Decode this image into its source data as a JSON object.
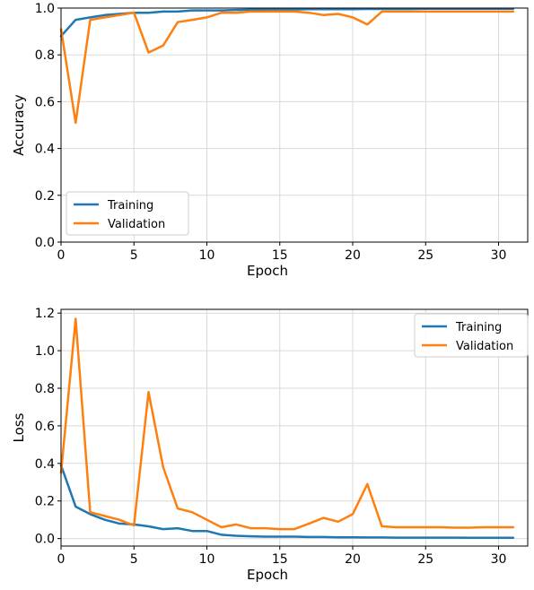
{
  "chart_data": [
    {
      "type": "line",
      "title": "",
      "xlabel": "Epoch",
      "ylabel": "Accuracy",
      "xlim": [
        0,
        32
      ],
      "ylim": [
        0.0,
        1.0
      ],
      "xticks": [
        "0",
        "5",
        "10",
        "15",
        "20",
        "25",
        "30"
      ],
      "yticks": [
        "0.0",
        "0.2",
        "0.4",
        "0.6",
        "0.8",
        "1.0"
      ],
      "grid": true,
      "legend_position": "lower-left",
      "x": [
        0,
        1,
        2,
        3,
        4,
        5,
        6,
        7,
        8,
        9,
        10,
        11,
        12,
        13,
        14,
        15,
        16,
        17,
        18,
        19,
        20,
        21,
        22,
        23,
        24,
        25,
        26,
        27,
        28,
        29,
        30,
        31
      ],
      "series": [
        {
          "name": "Training",
          "color": "#1f77b4",
          "values": [
            0.88,
            0.95,
            0.96,
            0.97,
            0.975,
            0.98,
            0.98,
            0.985,
            0.985,
            0.99,
            0.99,
            0.99,
            0.992,
            0.993,
            0.993,
            0.994,
            0.994,
            0.995,
            0.995,
            0.995,
            0.995,
            0.996,
            0.996,
            0.996,
            0.996,
            0.997,
            0.997,
            0.997,
            0.997,
            0.997,
            0.997,
            0.997
          ]
        },
        {
          "name": "Validation",
          "color": "#ff7f0e",
          "values": [
            0.91,
            0.51,
            0.95,
            0.96,
            0.97,
            0.98,
            0.81,
            0.84,
            0.94,
            0.95,
            0.96,
            0.98,
            0.98,
            0.985,
            0.985,
            0.985,
            0.985,
            0.98,
            0.97,
            0.975,
            0.96,
            0.93,
            0.985,
            0.985,
            0.985,
            0.985,
            0.985,
            0.985,
            0.985,
            0.985,
            0.985,
            0.985
          ]
        }
      ]
    },
    {
      "type": "line",
      "title": "",
      "xlabel": "Epoch",
      "ylabel": "Loss",
      "xlim": [
        0,
        32
      ],
      "ylim": [
        -0.04,
        1.22
      ],
      "xticks": [
        "0",
        "5",
        "10",
        "15",
        "20",
        "25",
        "30"
      ],
      "yticks": [
        "0.0",
        "0.2",
        "0.4",
        "0.6",
        "0.8",
        "1.0",
        "1.2"
      ],
      "grid": true,
      "legend_position": "top-right",
      "x": [
        0,
        1,
        2,
        3,
        4,
        5,
        6,
        7,
        8,
        9,
        10,
        11,
        12,
        13,
        14,
        15,
        16,
        17,
        18,
        19,
        20,
        21,
        22,
        23,
        24,
        25,
        26,
        27,
        28,
        29,
        30,
        31
      ],
      "series": [
        {
          "name": "Training",
          "color": "#1f77b4",
          "values": [
            0.39,
            0.17,
            0.13,
            0.1,
            0.08,
            0.075,
            0.065,
            0.05,
            0.055,
            0.04,
            0.04,
            0.02,
            0.015,
            0.012,
            0.01,
            0.01,
            0.01,
            0.008,
            0.008,
            0.007,
            0.007,
            0.006,
            0.006,
            0.005,
            0.005,
            0.005,
            0.005,
            0.005,
            0.004,
            0.004,
            0.004,
            0.004
          ]
        },
        {
          "name": "Validation",
          "color": "#ff7f0e",
          "values": [
            0.35,
            1.17,
            0.14,
            0.12,
            0.1,
            0.07,
            0.78,
            0.38,
            0.16,
            0.14,
            0.1,
            0.06,
            0.075,
            0.055,
            0.055,
            0.05,
            0.05,
            0.08,
            0.11,
            0.09,
            0.13,
            0.29,
            0.065,
            0.06,
            0.06,
            0.06,
            0.06,
            0.058,
            0.058,
            0.06,
            0.06,
            0.06
          ]
        }
      ]
    }
  ]
}
